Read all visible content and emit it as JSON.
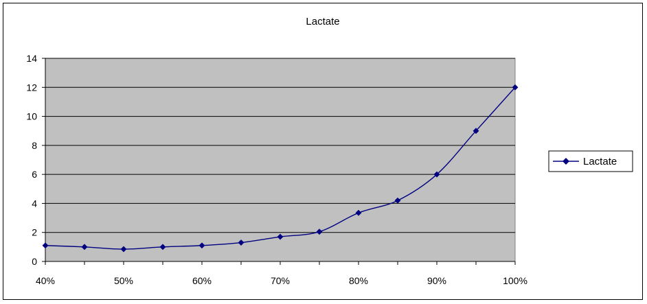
{
  "chart_data": {
    "type": "line",
    "title": "Lactate",
    "xlabel": "",
    "ylabel": "",
    "x_tick_labels": [
      "40%",
      "50%",
      "60%",
      "70%",
      "80%",
      "90%",
      "100%"
    ],
    "x": [
      40,
      45,
      50,
      55,
      60,
      65,
      70,
      75,
      80,
      85,
      90,
      95,
      100
    ],
    "series": [
      {
        "name": "Lactate",
        "values": [
          1.1,
          1.0,
          0.85,
          1.0,
          1.1,
          1.3,
          1.7,
          2.05,
          3.35,
          4.2,
          6.0,
          9.0,
          12.0
        ]
      }
    ],
    "xlim": [
      40,
      100
    ],
    "ylim": [
      0,
      14
    ],
    "y_ticks": [
      0,
      2,
      4,
      6,
      8,
      10,
      12,
      14
    ],
    "grid": "horizontal",
    "legend": "right",
    "colors": {
      "plot_background": "#c0c0c0",
      "series_line": "#000080",
      "gridline": "#000000"
    }
  }
}
